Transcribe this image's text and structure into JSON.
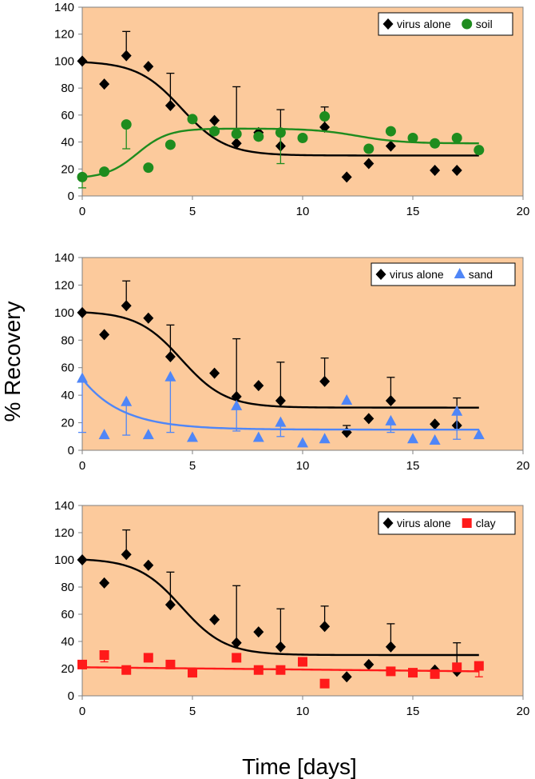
{
  "figure": {
    "ylabel": "% Recovery",
    "xlabel": "Time [days]"
  },
  "colors": {
    "plot_background": "#fcca9c",
    "virus_alone": "#000000",
    "soil": "#1e8c1e",
    "sand": "#4f86f7",
    "clay": "#ff1a1a"
  },
  "chart_data": [
    {
      "type": "scatter",
      "panel": "top",
      "xlim": [
        0,
        20
      ],
      "ylim": [
        0,
        140
      ],
      "xticks": [
        0,
        5,
        10,
        15,
        20
      ],
      "yticks": [
        0,
        20,
        40,
        60,
        80,
        100,
        120,
        140
      ],
      "grid": false,
      "legend_position": "top-right",
      "series": [
        {
          "name": "virus alone",
          "marker": "diamond",
          "color": "#000000",
          "x": [
            0,
            1,
            2,
            3,
            4,
            6,
            7,
            8,
            9,
            11,
            12,
            13,
            14,
            16,
            17
          ],
          "y": [
            100,
            83,
            104,
            96,
            67,
            56,
            39,
            47,
            37,
            51,
            14,
            24,
            37,
            19,
            19
          ],
          "error_up": [
            0,
            0,
            18,
            0,
            24,
            0,
            42,
            0,
            27,
            15,
            0,
            0,
            0,
            0,
            0
          ],
          "error_down": [
            0,
            0,
            0,
            0,
            0,
            0,
            0,
            0,
            0,
            0,
            0,
            0,
            0,
            0,
            0
          ],
          "fit": {
            "kind": "sigmoid",
            "top": 100,
            "bottom": 30,
            "midpoint": 4.5,
            "width": 1.0
          }
        },
        {
          "name": "soil",
          "marker": "circle",
          "color": "#1e8c1e",
          "x": [
            0,
            1,
            2,
            3,
            4,
            5,
            6,
            7,
            8,
            9,
            10,
            11,
            13,
            14,
            15,
            16,
            17,
            18
          ],
          "y": [
            14,
            18,
            53,
            21,
            38,
            57,
            48,
            46,
            44,
            47,
            43,
            59,
            35,
            48,
            43,
            39,
            43,
            34
          ],
          "error_up": [
            0,
            0,
            0,
            0,
            0,
            0,
            0,
            0,
            0,
            0,
            0,
            0,
            0,
            0,
            0,
            0,
            0,
            0
          ],
          "error_down": [
            8,
            0,
            18,
            0,
            0,
            0,
            0,
            0,
            0,
            23,
            0,
            0,
            0,
            0,
            0,
            0,
            0,
            0
          ],
          "fit": {
            "kind": "double_sigmoid",
            "base": 13,
            "peak": 50,
            "rise_mid": 2.5,
            "rise_width": 0.7,
            "end": 39,
            "fall_mid": 12.5,
            "fall_width": 1.0
          }
        }
      ]
    },
    {
      "type": "scatter",
      "panel": "middle",
      "xlim": [
        0,
        20
      ],
      "ylim": [
        0,
        140
      ],
      "xticks": [
        0,
        5,
        10,
        15,
        20
      ],
      "yticks": [
        0,
        20,
        40,
        60,
        80,
        100,
        120,
        140
      ],
      "grid": false,
      "legend_position": "top-right",
      "series": [
        {
          "name": "virus alone",
          "marker": "diamond",
          "color": "#000000",
          "x": [
            0,
            1,
            2,
            3,
            4,
            6,
            7,
            8,
            9,
            11,
            12,
            13,
            14,
            16,
            17
          ],
          "y": [
            100,
            84,
            105,
            96,
            68,
            56,
            39,
            47,
            36,
            50,
            13,
            23,
            36,
            19,
            18
          ],
          "error_up": [
            0,
            0,
            18,
            0,
            23,
            0,
            42,
            0,
            28,
            17,
            5,
            0,
            17,
            0,
            20
          ],
          "error_down": [
            0,
            0,
            0,
            0,
            0,
            0,
            0,
            0,
            0,
            0,
            0,
            0,
            0,
            0,
            0
          ],
          "fit": {
            "kind": "sigmoid",
            "top": 101,
            "bottom": 31,
            "midpoint": 4.5,
            "width": 1.0
          }
        },
        {
          "name": "sand",
          "marker": "triangle",
          "color": "#4f86f7",
          "x": [
            0,
            1,
            2,
            3,
            4,
            5,
            7,
            8,
            9,
            10,
            11,
            12,
            14,
            15,
            16,
            17,
            18
          ],
          "y": [
            52,
            11,
            35,
            11,
            53,
            9,
            32,
            9,
            20,
            5,
            8,
            36,
            21,
            8,
            7,
            28,
            11
          ],
          "error_up": [
            0,
            0,
            0,
            0,
            0,
            0,
            0,
            0,
            0,
            0,
            0,
            0,
            0,
            0,
            0,
            0,
            0
          ],
          "error_down": [
            39,
            0,
            24,
            0,
            40,
            0,
            18,
            0,
            10,
            0,
            0,
            0,
            8,
            0,
            0,
            20,
            0
          ],
          "fit": {
            "kind": "exponential",
            "start": 52,
            "plateau": 15,
            "tau": 1.8
          }
        }
      ]
    },
    {
      "type": "scatter",
      "panel": "bottom",
      "xlim": [
        0,
        20
      ],
      "ylim": [
        0,
        140
      ],
      "xticks": [
        0,
        5,
        10,
        15,
        20
      ],
      "yticks": [
        0,
        20,
        40,
        60,
        80,
        100,
        120,
        140
      ],
      "grid": false,
      "legend_position": "top-right",
      "series": [
        {
          "name": "virus alone",
          "marker": "diamond",
          "color": "#000000",
          "x": [
            0,
            1,
            2,
            3,
            4,
            6,
            7,
            8,
            9,
            11,
            12,
            13,
            14,
            16,
            17
          ],
          "y": [
            100,
            83,
            104,
            96,
            67,
            56,
            39,
            47,
            36,
            51,
            14,
            23,
            36,
            19,
            18
          ],
          "error_up": [
            0,
            0,
            18,
            0,
            24,
            0,
            42,
            0,
            28,
            15,
            0,
            0,
            17,
            0,
            21
          ],
          "error_down": [
            0,
            0,
            0,
            0,
            0,
            0,
            0,
            0,
            0,
            0,
            0,
            0,
            0,
            0,
            0
          ],
          "fit": {
            "kind": "sigmoid",
            "top": 101,
            "bottom": 30,
            "midpoint": 4.5,
            "width": 1.0
          }
        },
        {
          "name": "clay",
          "marker": "square",
          "color": "#ff1a1a",
          "x": [
            0,
            1,
            2,
            3,
            4,
            5,
            7,
            8,
            9,
            10,
            11,
            14,
            15,
            16,
            17,
            18
          ],
          "y": [
            23,
            30,
            19,
            28,
            23,
            17,
            28,
            19,
            19,
            25,
            9,
            18,
            17,
            16,
            21,
            22
          ],
          "error_up": [
            0,
            0,
            0,
            0,
            0,
            0,
            0,
            0,
            0,
            0,
            0,
            0,
            0,
            0,
            0,
            0
          ],
          "error_down": [
            0,
            5,
            0,
            0,
            0,
            0,
            0,
            0,
            0,
            0,
            0,
            0,
            0,
            0,
            0,
            8
          ],
          "fit": {
            "kind": "linear",
            "start": 21,
            "end": 18
          }
        }
      ]
    }
  ]
}
